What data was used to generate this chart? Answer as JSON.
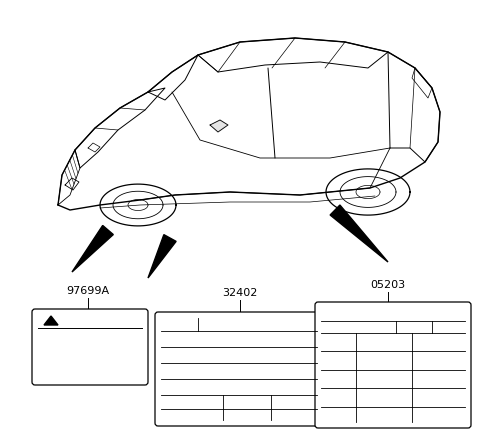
{
  "bg_color": "#ffffff",
  "line_color": "#000000",
  "labels": {
    "label1": "97699A",
    "label2": "32402",
    "label3": "05203"
  },
  "figsize": [
    4.8,
    4.29
  ],
  "dpi": 100
}
